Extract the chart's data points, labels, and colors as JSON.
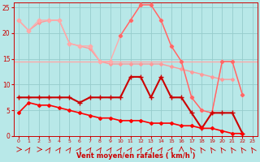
{
  "background_color": "#b8e8e8",
  "grid_color": "#96cccc",
  "xlabel": "Vent moyen/en rafales ( km/h )",
  "xlim": [
    -0.5,
    23.5
  ],
  "ylim": [
    0,
    26
  ],
  "yticks": [
    0,
    5,
    10,
    15,
    20,
    25
  ],
  "xticks": [
    0,
    1,
    2,
    3,
    4,
    5,
    6,
    7,
    8,
    9,
    10,
    11,
    12,
    13,
    14,
    15,
    16,
    17,
    18,
    19,
    20,
    21,
    22,
    23
  ],
  "line_flat_color": "#ffaaaa",
  "line_flat_y": 14.5,
  "line2_color": "#ffaaaa",
  "line2_x": [
    0,
    1,
    2,
    3,
    4,
    5,
    6,
    7,
    8,
    9,
    10,
    11,
    12,
    13,
    14,
    15,
    16,
    17,
    18,
    19,
    20,
    21,
    22,
    23
  ],
  "line2_y": [
    22.5,
    20.5,
    22.5,
    22.5,
    22.5,
    18.0,
    17.5,
    17.5,
    14.5,
    14.5,
    19.5,
    22.5,
    25.5,
    25.5,
    22.5,
    17.5,
    14.5,
    7.5,
    5.0,
    4.5,
    14.5,
    14.5,
    8.0,
    null
  ],
  "line3_color": "#ff9999",
  "line3_x": [
    0,
    1,
    2,
    3,
    4,
    5,
    6,
    7,
    8,
    9,
    10,
    11,
    12,
    13,
    14,
    15,
    16,
    17,
    18,
    19,
    20,
    21,
    22,
    23
  ],
  "line3_y": [
    22.5,
    20.5,
    22.0,
    22.5,
    22.5,
    18.0,
    17.5,
    17.0,
    14.5,
    14.0,
    14.0,
    14.0,
    14.0,
    14.0,
    14.0,
    13.5,
    13.0,
    12.5,
    12.0,
    11.5,
    11.0,
    11.0,
    null,
    null
  ],
  "line4_color": "#ff6666",
  "line4_x": [
    0,
    1,
    2,
    3,
    4,
    5,
    6,
    7,
    8,
    9,
    10,
    11,
    12,
    13,
    14,
    15,
    16,
    17,
    18,
    19,
    20,
    21,
    22,
    23
  ],
  "line4_y": [
    null,
    null,
    null,
    null,
    null,
    null,
    null,
    null,
    null,
    null,
    19.5,
    22.5,
    25.5,
    25.5,
    22.5,
    17.5,
    14.5,
    7.5,
    5.0,
    4.5,
    14.5,
    14.5,
    8.0,
    null
  ],
  "line5_color": "#cc0000",
  "line5_x": [
    0,
    1,
    2,
    3,
    4,
    5,
    6,
    7,
    8,
    9,
    10,
    11,
    12,
    13,
    14,
    15,
    16,
    17,
    18,
    19,
    20,
    21,
    22,
    23
  ],
  "line5_y": [
    7.5,
    7.5,
    7.5,
    7.5,
    7.5,
    7.5,
    6.5,
    7.5,
    7.5,
    7.5,
    7.5,
    11.5,
    11.5,
    7.5,
    11.5,
    7.5,
    7.5,
    4.5,
    1.5,
    4.5,
    4.5,
    4.5,
    0.5,
    null
  ],
  "line6_color": "#ff0000",
  "line6_x": [
    0,
    1,
    2,
    3,
    4,
    5,
    6,
    7,
    8,
    9,
    10,
    11,
    12,
    13,
    14,
    15,
    16,
    17,
    18,
    19,
    20,
    21,
    22,
    23
  ],
  "line6_y": [
    4.5,
    6.5,
    6.0,
    6.0,
    5.5,
    5.0,
    4.5,
    4.0,
    3.5,
    3.5,
    3.0,
    3.0,
    3.0,
    2.5,
    2.5,
    2.5,
    2.0,
    2.0,
    1.5,
    1.5,
    1.0,
    0.5,
    0.5,
    null
  ],
  "arrow_color": "#cc0000",
  "tick_color": "#cc0000",
  "label_color": "#cc0000"
}
